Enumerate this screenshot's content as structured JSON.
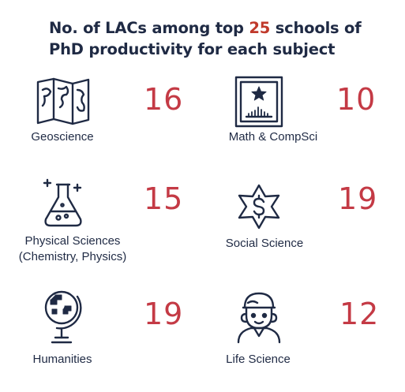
{
  "title": {
    "before": "No. of LACs among top ",
    "highlight": "25",
    "after": " schools of PhD productivity for each subject"
  },
  "colors": {
    "accent": "#c43a45",
    "text": "#1f2a44"
  },
  "subjects": [
    {
      "label": "Geoscience",
      "count": "16",
      "icon": "map-icon"
    },
    {
      "label": "Math & CompSci",
      "count": "10",
      "icon": "framed-star-chart-icon"
    },
    {
      "label": "Physical Sciences",
      "label2": "(Chemistry, Physics)",
      "count": "15",
      "icon": "flask-icon"
    },
    {
      "label": "Social Science",
      "count": "19",
      "icon": "star-dollar-icon"
    },
    {
      "label": "Humanities",
      "count": "19",
      "icon": "globe-icon"
    },
    {
      "label": "Life Science",
      "count": "12",
      "icon": "person-icon"
    }
  ]
}
